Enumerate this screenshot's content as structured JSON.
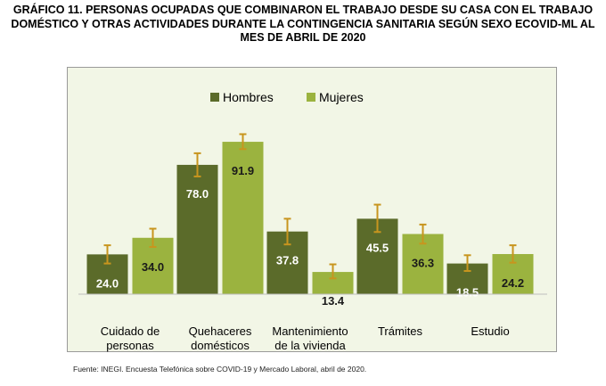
{
  "title": {
    "line1": "GRÁFICO 11. PERSONAS OCUPADAS QUE COMBINARON EL TRABAJO DESDE SU CASA CON EL TRABAJO",
    "line2": "DOMÉSTICO Y OTRAS ACTIVIDADES DURANTE LA CONTINGENCIA SANITARIA SEGÚN SEXO ECOVID-ML AL",
    "line3": "MES DE ABRIL DE 2020"
  },
  "source": "Fuente:  INEGI. Encuesta Telefónica sobre COVID-19 y Mercado Laboral, abril de 2020.",
  "colors": {
    "hombres": "#5b6b2a",
    "mujeres": "#9bb33f",
    "error_bar": "#c8951e",
    "plot_bg": "#f2f6e6"
  },
  "chart_data": {
    "type": "bar",
    "categories": [
      [
        "Cuidado de",
        "personas"
      ],
      [
        "Quehaceres",
        "domésticos"
      ],
      [
        "Mantenimiento",
        "de la vivienda"
      ],
      [
        "Trámites"
      ],
      [
        "Estudio"
      ]
    ],
    "series": [
      {
        "name": "Hombres",
        "values": [
          24.0,
          78.0,
          37.8,
          45.5,
          18.5
        ],
        "labels": [
          "24.0",
          "78.0",
          "37.8",
          "45.5",
          "18.5"
        ],
        "error_low": [
          18.5,
          71.0,
          30.0,
          37.5,
          14.0
        ],
        "error_high": [
          29.5,
          85.0,
          45.5,
          54.0,
          23.5
        ]
      },
      {
        "name": "Mujeres",
        "values": [
          34.0,
          91.9,
          13.4,
          36.3,
          24.2
        ],
        "labels": [
          "34.0",
          "91.9",
          "13.4",
          "36.3",
          "24.2"
        ],
        "error_low": [
          28.5,
          87.5,
          9.5,
          30.5,
          19.0
        ],
        "error_high": [
          39.5,
          96.5,
          18.0,
          42.0,
          29.5
        ]
      }
    ],
    "ylim": [
      0,
      100
    ],
    "legend_position": "top-center",
    "grid": false
  }
}
